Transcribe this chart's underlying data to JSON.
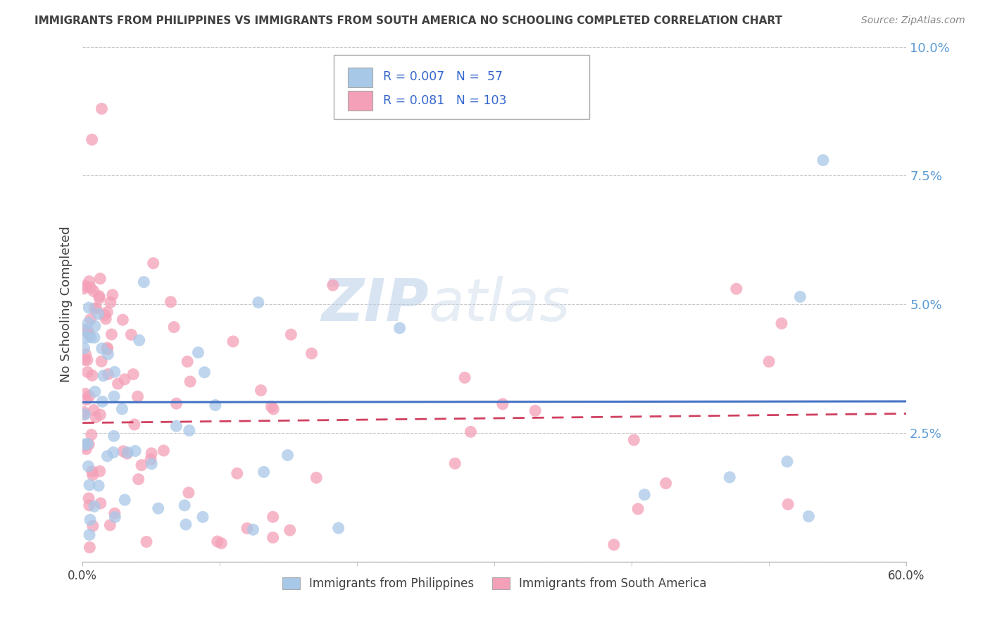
{
  "title": "IMMIGRANTS FROM PHILIPPINES VS IMMIGRANTS FROM SOUTH AMERICA NO SCHOOLING COMPLETED CORRELATION CHART",
  "source": "Source: ZipAtlas.com",
  "ylabel": "No Schooling Completed",
  "xlim": [
    0.0,
    0.6
  ],
  "ylim": [
    0.0,
    0.1
  ],
  "xticks": [
    0.0,
    0.6
  ],
  "yticks": [
    0.0,
    0.025,
    0.05,
    0.075,
    0.1
  ],
  "xticklabels": [
    "0.0%",
    "60.0%"
  ],
  "yticklabels": [
    "",
    "2.5%",
    "5.0%",
    "7.5%",
    "10.0%"
  ],
  "blue_R": 0.007,
  "blue_N": 57,
  "pink_R": 0.081,
  "pink_N": 103,
  "blue_color": "#a8c8e8",
  "pink_color": "#f4a0b8",
  "blue_line_color": "#4472c4",
  "pink_line_color": "#d04060",
  "watermark_zip": "ZIP",
  "watermark_atlas": "atlas",
  "legend_blue_label": "Immigrants from Philippines",
  "legend_pink_label": "Immigrants from South America",
  "background_color": "#ffffff",
  "grid_color": "#c8c8c8",
  "tick_color": "#5b9bd5",
  "title_color": "#404040",
  "source_color": "#888888"
}
